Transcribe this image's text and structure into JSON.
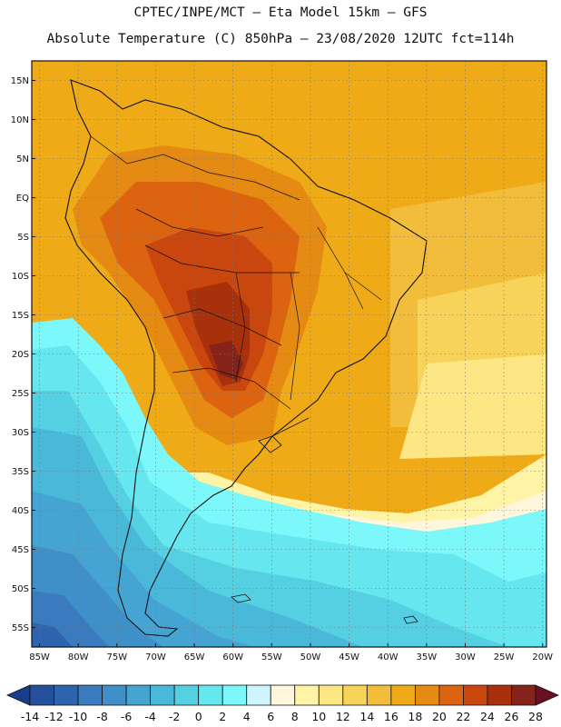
{
  "title": {
    "line1": "CPTEC/INPE/MCT –  Eta Model 15km – GFS",
    "line2": "Absolute Temperature (C) 850hPa – 23/08/2020 12UTC fct=114h"
  },
  "map": {
    "region": "South America",
    "lat_labels": [
      "15N",
      "10N",
      "5N",
      "EQ",
      "5S",
      "10S",
      "15S",
      "20S",
      "25S",
      "30S",
      "35S",
      "40S",
      "45S",
      "50S",
      "55S"
    ],
    "lon_labels": [
      "85W",
      "80W",
      "75W",
      "70W",
      "65W",
      "60W",
      "55W",
      "50W",
      "45W",
      "40W",
      "35W",
      "30W",
      "25W",
      "20W"
    ]
  },
  "colorbar": {
    "values": [
      "-14",
      "-12",
      "-10",
      "-8",
      "-6",
      "-4",
      "-2",
      "0",
      "2",
      "4",
      "6",
      "8",
      "10",
      "12",
      "14",
      "16",
      "18",
      "20",
      "22",
      "24",
      "26",
      "28"
    ],
    "colors": [
      "#1a3c8c",
      "#25509c",
      "#2e64ad",
      "#3a7bbf",
      "#3f8fc8",
      "#46a4d2",
      "#4ab8d9",
      "#55d0e3",
      "#66e6ef",
      "#7cf7fa",
      "#cdf5fb",
      "#fff6dc",
      "#fff3a6",
      "#fde784",
      "#f8d35a",
      "#f2bd3a",
      "#efaa17",
      "#e58a12",
      "#dc6410",
      "#c9470e",
      "#a8310c",
      "#832319",
      "#6b0f22"
    ]
  }
}
